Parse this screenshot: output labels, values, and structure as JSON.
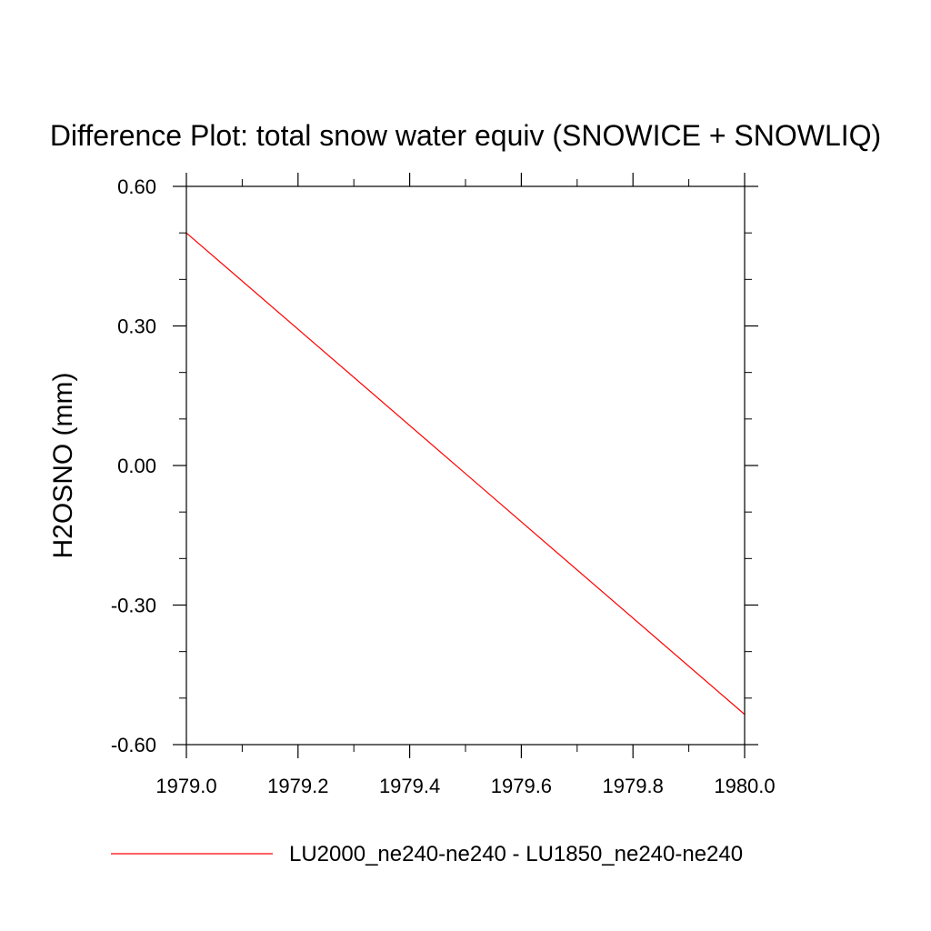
{
  "chart_data": {
    "type": "line",
    "title": "Difference Plot: total snow water equiv (SNOWICE + SNOWLIQ)",
    "xlabel": "",
    "ylabel": "H2OSNO  (mm)",
    "xlim": [
      1979.0,
      1980.0
    ],
    "ylim": [
      -0.6,
      0.6
    ],
    "x_ticks": [
      "1979.0",
      "1979.2",
      "1979.4",
      "1979.6",
      "1979.8",
      "1980.0"
    ],
    "x_tick_values": [
      1979.0,
      1979.2,
      1979.4,
      1979.6,
      1979.8,
      1980.0
    ],
    "y_ticks": [
      "0.60",
      "0.30",
      "0.00",
      "-0.30",
      "-0.60"
    ],
    "y_tick_values": [
      0.6,
      0.3,
      0.0,
      -0.3,
      -0.6
    ],
    "x_minor_step": 0.1,
    "y_minor_step": 0.1,
    "grid": false,
    "legend_position": "bottom",
    "series": [
      {
        "name": "LU2000_ne240-ne240 - LU1850_ne240-ne240",
        "color": "#ff0000",
        "x": [
          1979.0,
          1980.0
        ],
        "y": [
          0.5,
          -0.535
        ]
      }
    ]
  }
}
